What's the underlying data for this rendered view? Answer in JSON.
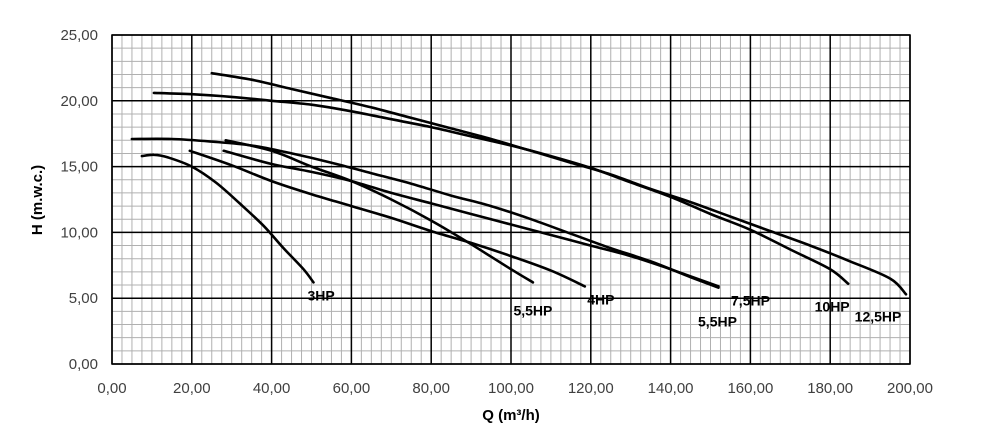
{
  "chart_data": {
    "type": "line",
    "title": "",
    "xlabel": "Q (m³/h)",
    "ylabel": "H (m.w.c.)",
    "xlim": [
      0,
      200
    ],
    "ylim": [
      0,
      25
    ],
    "x_ticks": [
      "0,00",
      "20,00",
      "40,00",
      "60,00",
      "80,00",
      "100,00",
      "120,00",
      "140,00",
      "160,00",
      "180,00",
      "200,00"
    ],
    "y_ticks": [
      "0,00",
      "5,00",
      "10,00",
      "15,00",
      "20,00",
      "25,00"
    ],
    "grid": {
      "major": true,
      "minor": true,
      "minor_x_step": 2.5,
      "minor_y_step": 1
    },
    "legend": "none",
    "line_color": "#000000",
    "series": [
      {
        "name": "3HP",
        "points": [
          [
            7.5,
            15.8
          ],
          [
            10.5,
            15.9
          ],
          [
            14,
            15.7
          ],
          [
            20,
            15.0
          ],
          [
            26,
            13.8
          ],
          [
            32,
            12.2
          ],
          [
            38,
            10.5
          ],
          [
            43,
            8.8
          ],
          [
            48,
            7.2
          ],
          [
            50.5,
            6.2
          ]
        ]
      },
      {
        "name": "5,5HP",
        "points": [
          [
            28.5,
            17.0
          ],
          [
            40,
            16.2
          ],
          [
            50,
            15.0
          ],
          [
            60,
            13.9
          ],
          [
            70,
            12.5
          ],
          [
            80,
            10.9
          ],
          [
            90,
            9.1
          ],
          [
            100,
            7.2
          ],
          [
            105.5,
            6.2
          ]
        ]
      },
      {
        "name": "4HP",
        "points": [
          [
            19.5,
            16.2
          ],
          [
            30,
            15.1
          ],
          [
            40,
            13.9
          ],
          [
            50,
            12.9
          ],
          [
            60,
            12.0
          ],
          [
            70,
            11.1
          ],
          [
            80,
            10.1
          ],
          [
            90,
            9.2
          ],
          [
            100,
            8.2
          ],
          [
            110,
            7.1
          ],
          [
            118.5,
            5.9
          ]
        ]
      },
      {
        "name": "5,5HP",
        "points": [
          [
            5,
            17.1
          ],
          [
            15,
            17.1
          ],
          [
            25,
            16.9
          ],
          [
            35,
            16.6
          ],
          [
            45,
            16.0
          ],
          [
            55,
            15.3
          ],
          [
            65,
            14.5
          ],
          [
            75,
            13.7
          ],
          [
            85,
            12.8
          ],
          [
            95,
            12.0
          ],
          [
            105,
            11.0
          ],
          [
            115,
            9.9
          ],
          [
            125,
            8.8
          ],
          [
            135,
            7.8
          ],
          [
            145,
            6.6
          ],
          [
            152,
            5.8
          ]
        ]
      },
      {
        "name": "7,5HP",
        "points": [
          [
            28,
            16.2
          ],
          [
            40,
            15.2
          ],
          [
            50,
            14.6
          ],
          [
            60,
            13.9
          ],
          [
            70,
            13.0
          ],
          [
            80,
            12.2
          ],
          [
            90,
            11.4
          ],
          [
            100,
            10.6
          ],
          [
            110,
            9.8
          ],
          [
            120,
            9.0
          ],
          [
            130,
            8.2
          ],
          [
            140,
            7.2
          ],
          [
            152,
            5.9
          ]
        ]
      },
      {
        "name": "10HP",
        "points": [
          [
            10.5,
            20.6
          ],
          [
            20,
            20.5
          ],
          [
            30,
            20.3
          ],
          [
            40,
            20.0
          ],
          [
            50,
            19.7
          ],
          [
            60,
            19.2
          ],
          [
            70,
            18.6
          ],
          [
            80,
            18.0
          ],
          [
            90,
            17.3
          ],
          [
            100,
            16.6
          ],
          [
            110,
            15.8
          ],
          [
            120,
            14.9
          ],
          [
            130,
            13.8
          ],
          [
            140,
            12.7
          ],
          [
            150,
            11.4
          ],
          [
            160,
            10.2
          ],
          [
            170,
            8.7
          ],
          [
            180,
            7.2
          ],
          [
            184.5,
            6.1
          ]
        ]
      },
      {
        "name": "12,5HP",
        "points": [
          [
            25,
            22.1
          ],
          [
            35,
            21.6
          ],
          [
            45,
            20.9
          ],
          [
            55,
            20.2
          ],
          [
            65,
            19.5
          ],
          [
            75,
            18.7
          ],
          [
            85,
            17.9
          ],
          [
            95,
            17.1
          ],
          [
            105,
            16.2
          ],
          [
            115,
            15.3
          ],
          [
            125,
            14.4
          ],
          [
            135,
            13.3
          ],
          [
            145,
            12.3
          ],
          [
            155,
            11.2
          ],
          [
            165,
            10.1
          ],
          [
            175,
            9.0
          ],
          [
            185,
            7.8
          ],
          [
            195,
            6.5
          ],
          [
            199,
            5.3
          ]
        ]
      }
    ]
  }
}
